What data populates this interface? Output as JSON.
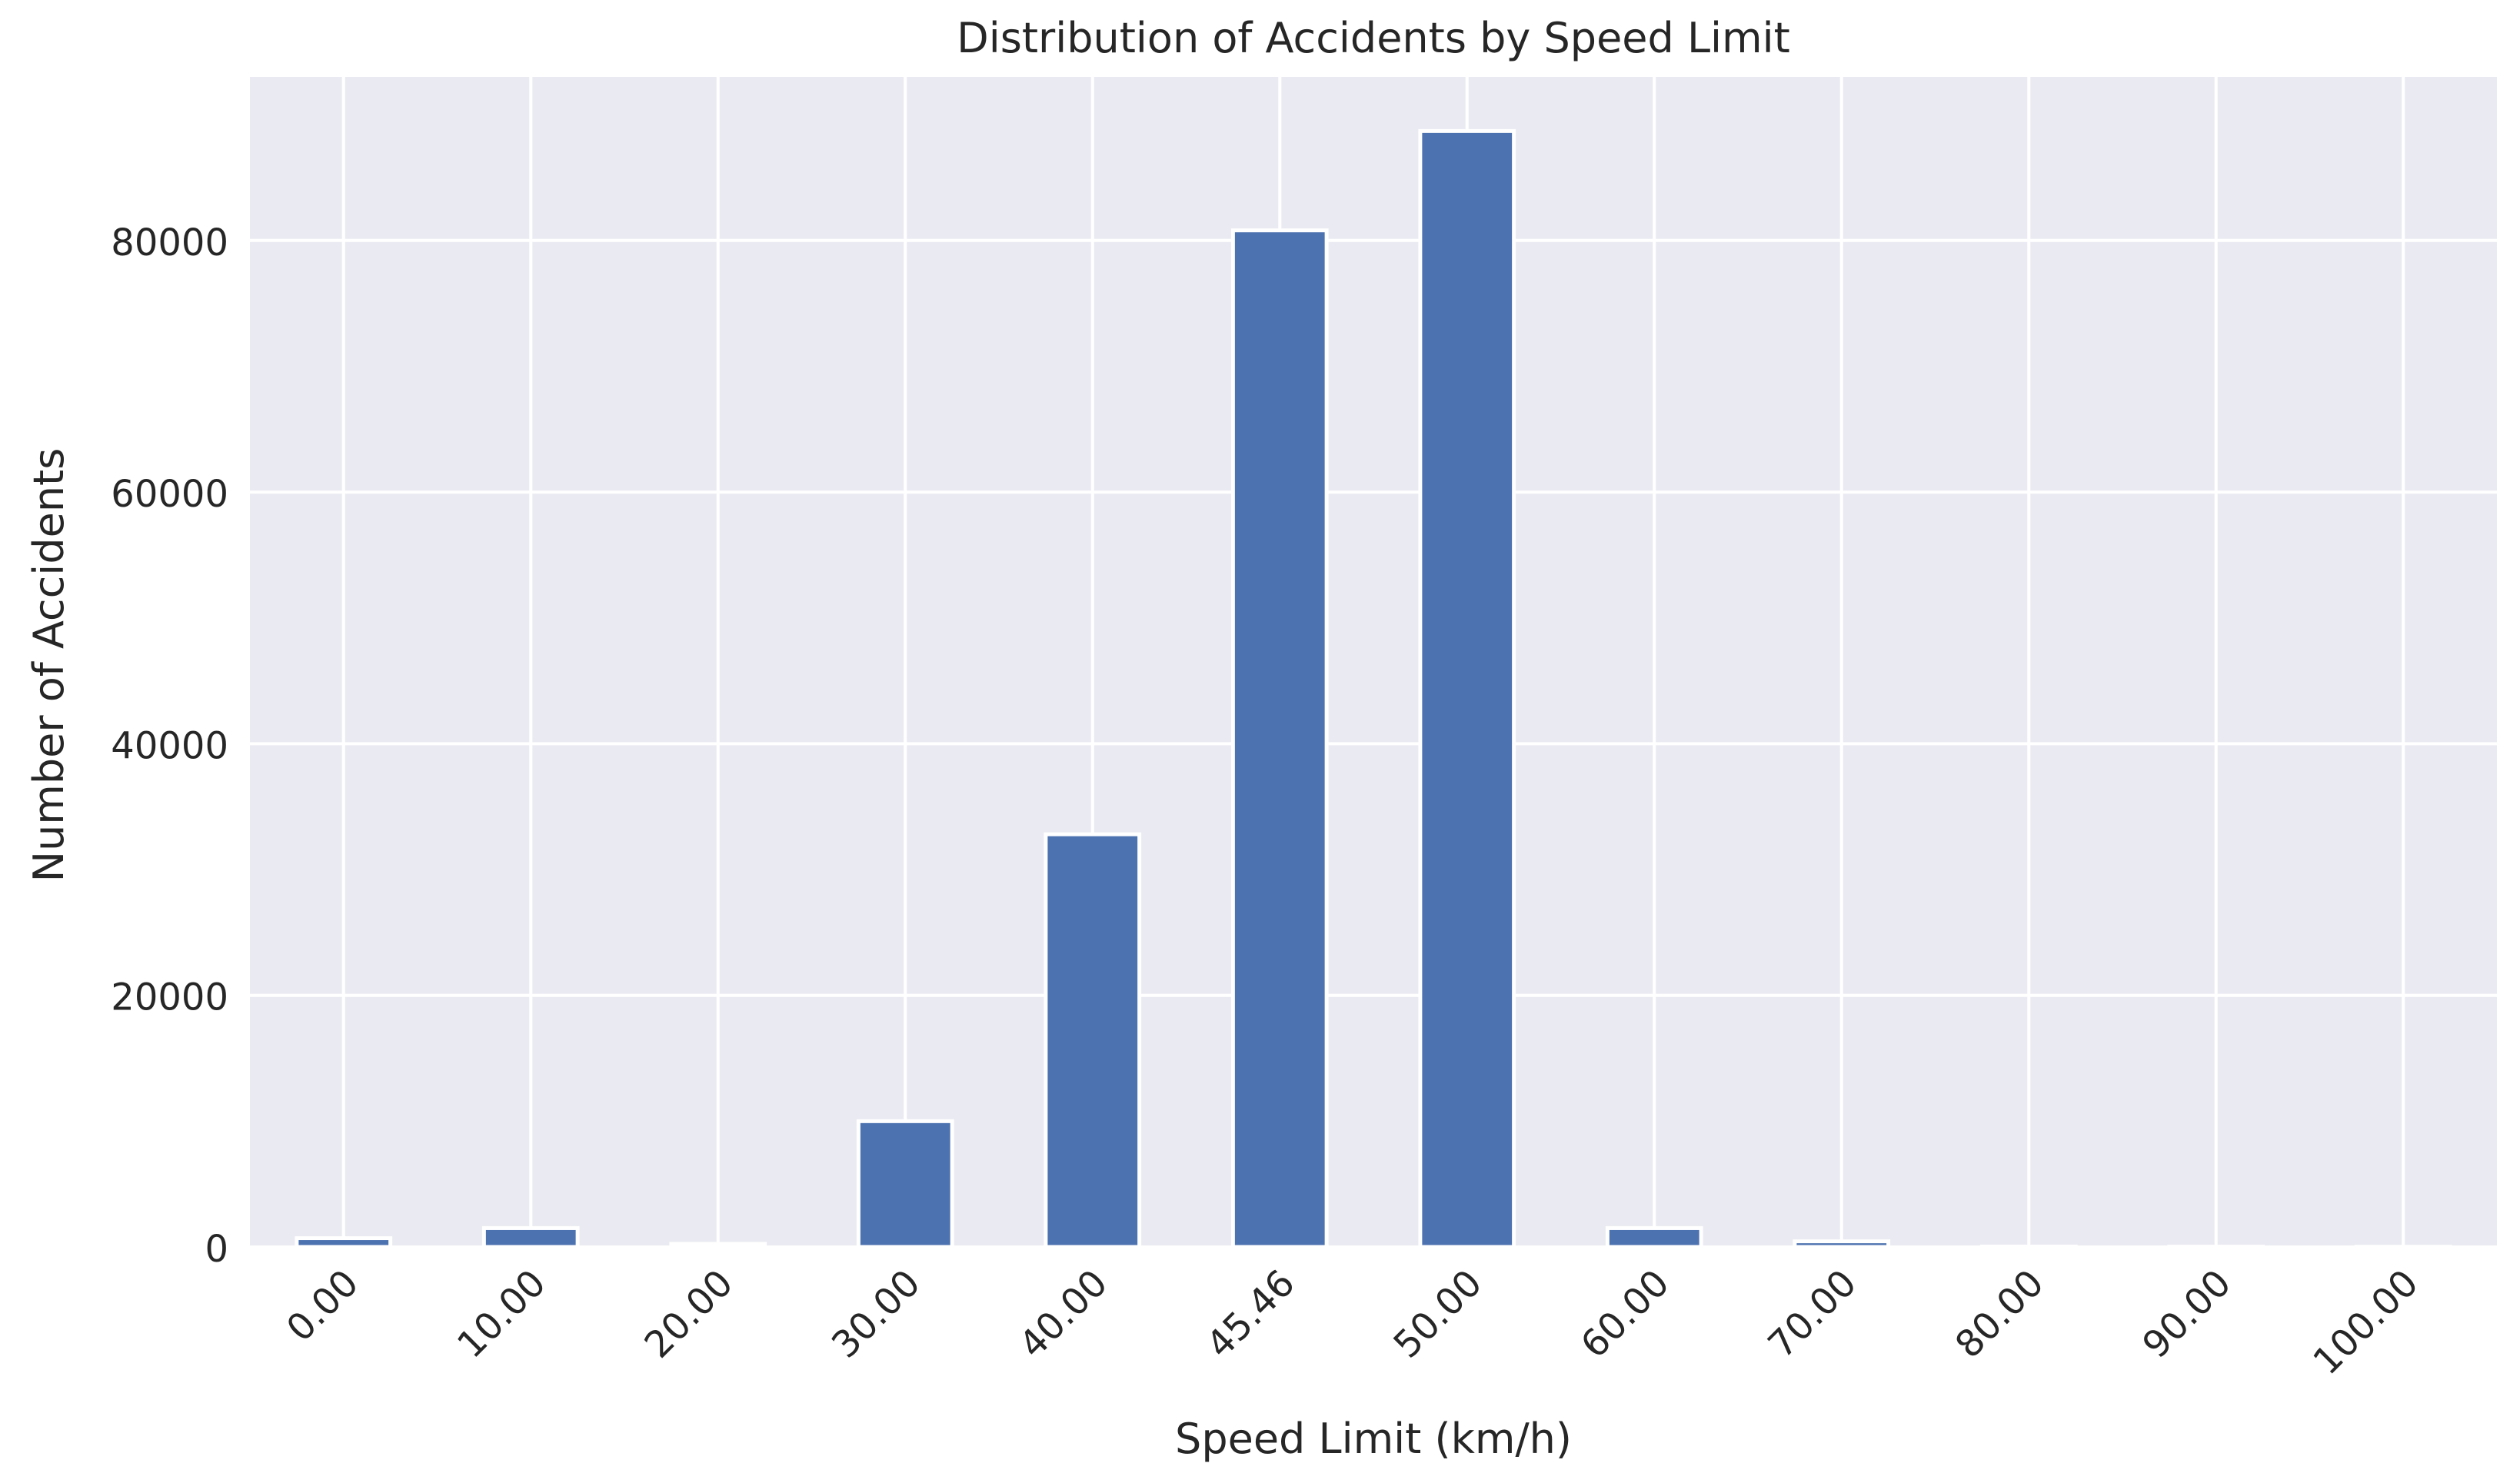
{
  "chart_data": {
    "type": "bar",
    "title": "Distribution of Accidents by Speed Limit",
    "xlabel": "Speed Limit (km/h)",
    "ylabel": "Number of Accidents",
    "categories": [
      "0.00",
      "10.00",
      "20.00",
      "30.00",
      "40.00",
      "45.46",
      "50.00",
      "60.00",
      "70.00",
      "80.00",
      "90.00",
      "100.00"
    ],
    "values": [
      700,
      1500,
      250,
      10000,
      32800,
      80800,
      88700,
      1500,
      450,
      30,
      20,
      15
    ],
    "ylim": [
      0,
      93000
    ],
    "yticks": [
      0,
      20000,
      40000,
      60000,
      80000
    ],
    "ytick_labels": [
      "0",
      "20000",
      "40000",
      "60000",
      "80000"
    ],
    "grid": true,
    "colors": {
      "bar": "#4c72b0",
      "plot_background": "#eaeaf2",
      "grid": "#ffffff",
      "text": "#262626"
    }
  }
}
